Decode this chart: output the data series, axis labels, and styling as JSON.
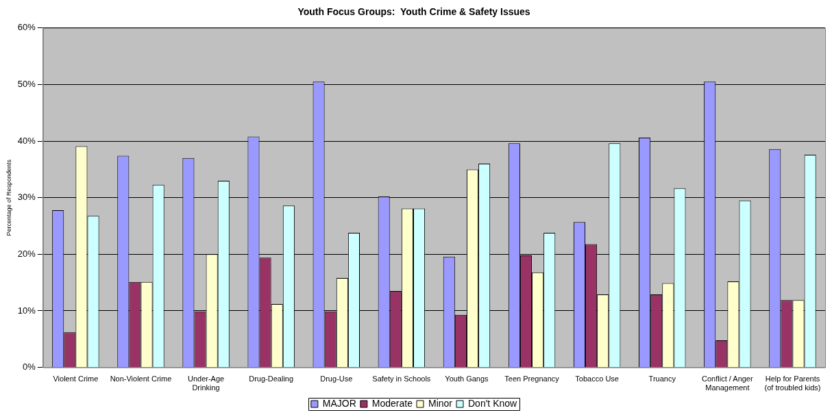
{
  "chart_data": {
    "type": "bar",
    "title": "Youth Focus Groups:  Youth Crime & Safety Issues",
    "ylabel": "Percentage of Respondents",
    "categories": [
      "Violent Crime",
      "Non-Violent Crime",
      "Under-Age Drinking",
      "Drug-Dealing",
      "Drug-Use",
      "Safety in Schools",
      "Youth Gangs",
      "Teen Pregnancy",
      "Tobacco Use",
      "Truancy",
      "Conflict / Anger Management",
      "Help for Parents (of troubled kids)"
    ],
    "series": [
      {
        "name": "MAJOR",
        "color": "#9999ff",
        "values": [
          27.8,
          37.4,
          37.0,
          40.8,
          50.5,
          30.2,
          19.6,
          39.6,
          25.7,
          40.6,
          50.5,
          38.6
        ]
      },
      {
        "name": "Moderate",
        "color": "#993366",
        "values": [
          6.2,
          15.1,
          9.9,
          19.4,
          9.9,
          13.5,
          9.3,
          19.8,
          21.8,
          12.9,
          4.8,
          11.9
        ]
      },
      {
        "name": "Minor",
        "color": "#ffffcc",
        "values": [
          39.1,
          15.1,
          20.0,
          11.2,
          15.8,
          28.1,
          35.0,
          16.8,
          12.9,
          14.9,
          15.2,
          11.9
        ]
      },
      {
        "name": "Don't Know",
        "color": "#ccffff",
        "values": [
          26.8,
          32.3,
          33.0,
          28.6,
          23.8,
          28.1,
          36.0,
          23.8,
          39.6,
          31.7,
          29.5,
          37.6
        ]
      }
    ],
    "ylim": [
      0,
      60
    ],
    "yticks": [
      {
        "value": 0,
        "label": "0%"
      },
      {
        "value": 10,
        "label": "10%"
      },
      {
        "value": 20,
        "label": "20%"
      },
      {
        "value": 30,
        "label": "30%"
      },
      {
        "value": 40,
        "label": "40%"
      },
      {
        "value": 50,
        "label": "50%"
      },
      {
        "value": 60,
        "label": "60%"
      }
    ],
    "grid": "y",
    "legend": "bottom"
  }
}
